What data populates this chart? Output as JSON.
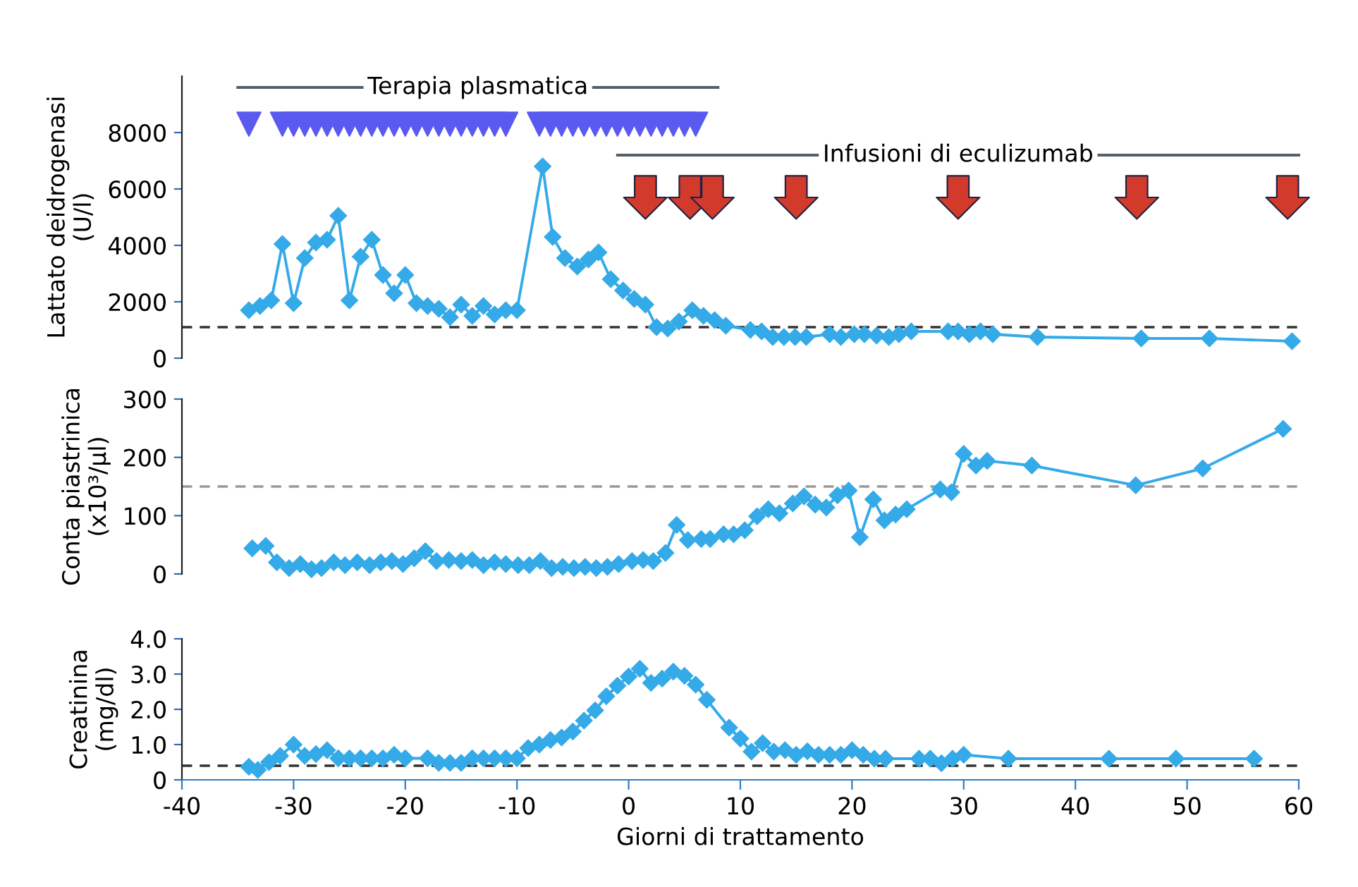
{
  "chart_data": [
    {
      "type": "line",
      "ylabel": "Lattato deidrogenasi\n(U/l)",
      "xlim": [
        -40,
        60
      ],
      "ylim": [
        0,
        10000
      ],
      "yticks": [
        0,
        2000,
        4000,
        6000,
        8000
      ],
      "tick_labels": "y",
      "grid": false,
      "marker": "diamond",
      "line_style": "solid",
      "series": [
        {
          "color": "#35aae8",
          "x": [
            -34,
            -33,
            -32,
            -31,
            -30,
            -29,
            -28,
            -27,
            -26,
            -25,
            -24,
            -23,
            -22,
            -21,
            -20,
            -19,
            -18,
            -17,
            -16,
            -15,
            -14,
            -13,
            -12,
            -11,
            -10,
            -7.7,
            -6.8,
            -5.7,
            -4.6,
            -3.6,
            -2.7,
            -1.6,
            -0.5,
            0.5,
            1.5,
            2.5,
            3.5,
            4.5,
            5.7,
            6.7,
            7.7,
            8.7,
            10.9,
            11.9,
            12.9,
            13.9,
            14.9,
            15.9,
            18,
            19,
            20.2,
            21.1,
            22.2,
            23.3,
            24.2,
            25.3,
            28.6,
            29.5,
            30.5,
            31.5,
            32.6,
            36.6,
            45.9,
            52,
            59.4
          ],
          "values": [
            1700,
            1850,
            2050,
            4050,
            1950,
            3550,
            4100,
            4200,
            5050,
            2050,
            3600,
            4200,
            2950,
            2300,
            2950,
            1950,
            1850,
            1750,
            1450,
            1900,
            1500,
            1850,
            1550,
            1700,
            1700,
            6800,
            4300,
            3550,
            3250,
            3500,
            3750,
            2800,
            2400,
            2100,
            1900,
            1100,
            1050,
            1300,
            1700,
            1500,
            1350,
            1150,
            1000,
            950,
            750,
            750,
            750,
            750,
            850,
            750,
            850,
            850,
            800,
            750,
            850,
            950,
            950,
            950,
            850,
            950,
            850,
            750,
            700,
            700,
            600
          ]
        },
        {
          "type": "scatter",
          "marker": "triangle",
          "color": "#5a5af0",
          "x": [
            -34,
            -31,
            -30,
            -29,
            -28,
            -27,
            -26,
            -25,
            -24,
            -23,
            -22,
            -21,
            -20,
            -19,
            -18,
            -17,
            -16,
            -15,
            -14,
            -13,
            -12,
            -11,
            -8,
            -7,
            -6,
            -5,
            -4,
            -3,
            -2,
            -1,
            0,
            1,
            2,
            3,
            4,
            5,
            6
          ],
          "values": [
            8300,
            8300,
            8300,
            8300,
            8300,
            8300,
            8300,
            8300,
            8300,
            8300,
            8300,
            8300,
            8300,
            8300,
            8300,
            8300,
            8300,
            8300,
            8300,
            8300,
            8300,
            8300,
            8300,
            8300,
            8300,
            8300,
            8300,
            8300,
            8300,
            8300,
            8300,
            8300,
            8300,
            8300,
            8300,
            8300,
            8300
          ]
        },
        {
          "type": "scatter",
          "color": "#d23b2b",
          "x": [
            1.5,
            5.5,
            7.5,
            15,
            29.5,
            45.5,
            59
          ],
          "values": [
            5700,
            5700,
            5700,
            5700,
            5700,
            5700,
            5700
          ]
        },
        {
          "type": "line",
          "marker": "none",
          "color": "#555f6a",
          "x": [
            -35,
            8
          ],
          "values": [
            9600,
            9600
          ]
        },
        {
          "type": "line",
          "marker": "none",
          "color": "#555f6a",
          "x": [
            -1,
            60
          ],
          "values": [
            7200,
            7200
          ]
        }
      ],
      "ref_lines": [
        {
          "axis": "y",
          "value": 1100,
          "color": "#333333",
          "line_style": "dashed"
        }
      ],
      "annotations": [
        "Terapia plasmatica",
        "Infusioni di eculizumab"
      ]
    },
    {
      "type": "line",
      "ylabel": "Conta piastrinica\n(x10³/µl)",
      "xlim": [
        -40,
        60
      ],
      "ylim": [
        0,
        300
      ],
      "yticks": [
        0,
        100,
        200,
        300
      ],
      "tick_labels": "y",
      "grid": false,
      "marker": "diamond",
      "line_style": "solid",
      "series": [
        {
          "color": "#35aae8",
          "x": [
            -33.7,
            -32.5,
            -31.5,
            -30.4,
            -29.4,
            -28.4,
            -27.5,
            -26.4,
            -25.4,
            -24.3,
            -23.2,
            -22.2,
            -21.2,
            -20.2,
            -19.2,
            -18.2,
            -17.2,
            -16.1,
            -15.0,
            -14.0,
            -13.0,
            -12.0,
            -11.0,
            -9.9,
            -8.9,
            -7.9,
            -6.9,
            -5.9,
            -4.9,
            -3.9,
            -2.9,
            -1.9,
            -0.9,
            0.3,
            1.3,
            2.2,
            3.3,
            4.3,
            5.3,
            6.5,
            7.3,
            8.5,
            9.4,
            10.4,
            11.5,
            12.5,
            13.5,
            14.7,
            15.7,
            16.7,
            17.7,
            18.7,
            19.7,
            20.7,
            21.9,
            22.9,
            23.9,
            24.9,
            27.9,
            28.9,
            30.0,
            31.1,
            32.1,
            36.1,
            45.4,
            51.4,
            58.6
          ],
          "values": [
            44,
            48,
            20,
            10,
            17,
            8,
            10,
            20,
            15,
            20,
            15,
            20,
            22,
            17,
            27,
            39,
            22,
            24,
            22,
            24,
            15,
            20,
            17,
            15,
            15,
            22,
            10,
            12,
            10,
            12,
            10,
            12,
            17,
            22,
            24,
            22,
            36,
            84,
            58,
            60,
            60,
            68,
            68,
            75,
            99,
            111,
            104,
            121,
            133,
            119,
            114,
            135,
            143,
            63,
            128,
            92,
            102,
            111,
            145,
            140,
            206,
            186,
            194,
            186,
            152,
            181,
            249
          ]
        }
      ],
      "ref_lines": [
        {
          "axis": "y",
          "value": 150,
          "color": "#999999",
          "line_style": "dashed"
        }
      ]
    },
    {
      "type": "line",
      "ylabel": "Creatinina\n(mg/dl)",
      "xlabel": "Giorni di trattamento",
      "xlim": [
        -40,
        60
      ],
      "xticks": [
        -40,
        -30,
        -20,
        -10,
        0,
        10,
        20,
        30,
        40,
        50,
        60
      ],
      "ylim": [
        0,
        4
      ],
      "yticks": [
        0,
        {
          "value": 1,
          "label": "1.0"
        },
        {
          "value": 2,
          "label": "2.0"
        },
        {
          "value": 3,
          "label": "3.0"
        },
        {
          "value": 4,
          "label": "4.0"
        }
      ],
      "grid": false,
      "marker": "diamond",
      "line_style": "solid",
      "series": [
        {
          "color": "#35aae8",
          "x": [
            -34,
            -33.2,
            -32.2,
            -31.2,
            -30,
            -29,
            -28,
            -27,
            -26,
            -25,
            -24,
            -23,
            -22,
            -21,
            -20,
            -18,
            -17,
            -16,
            -15,
            -14,
            -13,
            -12,
            -11,
            -10,
            -9,
            -8,
            -7,
            -6,
            -5,
            -4,
            -3,
            -2,
            -1,
            0,
            1,
            2,
            3,
            4,
            5,
            6,
            7,
            9,
            10,
            11,
            12,
            13,
            14,
            15,
            16,
            17,
            18,
            19,
            20,
            21,
            22,
            23,
            26,
            27,
            28,
            29,
            30,
            34,
            43,
            49,
            56
          ],
          "values": [
            0.37,
            0.28,
            0.5,
            0.68,
            1.0,
            0.68,
            0.73,
            0.84,
            0.61,
            0.61,
            0.61,
            0.61,
            0.61,
            0.71,
            0.61,
            0.61,
            0.48,
            0.48,
            0.48,
            0.61,
            0.61,
            0.61,
            0.61,
            0.61,
            0.9,
            1.0,
            1.13,
            1.2,
            1.37,
            1.68,
            1.97,
            2.37,
            2.67,
            2.93,
            3.15,
            2.75,
            2.87,
            3.07,
            2.95,
            2.7,
            2.27,
            1.48,
            1.17,
            0.8,
            1.04,
            0.8,
            0.84,
            0.71,
            0.81,
            0.71,
            0.71,
            0.71,
            0.84,
            0.71,
            0.6,
            0.6,
            0.6,
            0.6,
            0.47,
            0.6,
            0.71,
            0.6,
            0.6,
            0.6,
            0.6
          ]
        }
      ],
      "ref_lines": [
        {
          "axis": "y",
          "value": 0.4,
          "color": "#333333",
          "line_style": "dashed"
        }
      ]
    }
  ]
}
